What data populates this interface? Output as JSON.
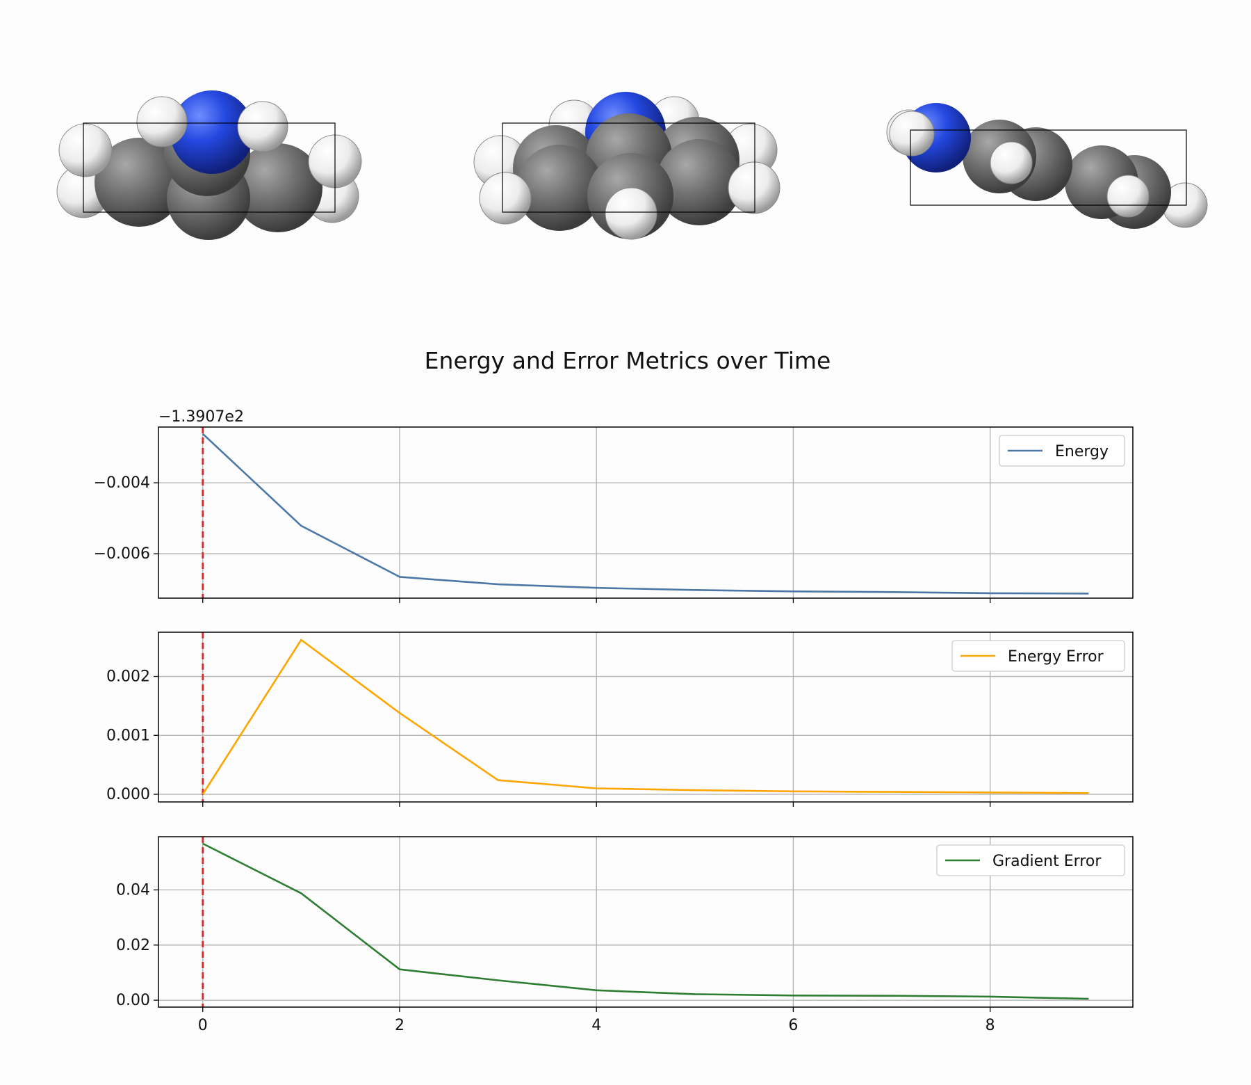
{
  "figure": {
    "title": "Energy and Error Metrics over Time",
    "marker_line_x": 0,
    "molecule_views": [
      {
        "name": "view-1"
      },
      {
        "name": "view-2"
      },
      {
        "name": "view-3"
      }
    ],
    "atom_colors": {
      "nitrogen": "#2448e0",
      "carbon": "#7a7a7a",
      "hydrogen": "#f2f2f2"
    }
  },
  "chart_data": [
    {
      "type": "line",
      "series": [
        {
          "name": "Energy",
          "color": "#4c78a8",
          "x": [
            0,
            1,
            2,
            3,
            4,
            5,
            6,
            7,
            8,
            9
          ],
          "y": [
            -139.07262,
            -139.07521,
            -139.07665,
            -139.07686,
            -139.07696,
            -139.07702,
            -139.07706,
            -139.07708,
            -139.07711,
            -139.07712
          ]
        }
      ],
      "offset_label": "−1.3907e2",
      "offset": -139.07,
      "yticks": [
        -0.004,
        -0.006
      ],
      "ytick_labels": [
        "−0.004",
        "−0.006"
      ],
      "xlim": [
        -0.45,
        9.45
      ],
      "ylim": [
        -0.00725,
        -0.00243
      ],
      "grid": true,
      "legend": "top-right"
    },
    {
      "type": "line",
      "series": [
        {
          "name": "Energy Error",
          "color": "#ffa500",
          "x": [
            0,
            1,
            2,
            3,
            4,
            5,
            6,
            7,
            8,
            9
          ],
          "y": [
            0.0,
            0.00262,
            0.00138,
            0.00024,
            0.0001,
            7e-05,
            5e-05,
            4e-05,
            3e-05,
            2e-05
          ]
        }
      ],
      "yticks": [
        0.0,
        0.001,
        0.002
      ],
      "ytick_labels": [
        "0.000",
        "0.001",
        "0.002"
      ],
      "xlim": [
        -0.45,
        9.45
      ],
      "ylim": [
        -0.00013,
        0.00275
      ],
      "grid": true,
      "legend": "top-right"
    },
    {
      "type": "line",
      "series": [
        {
          "name": "Gradient Error",
          "color": "#2e7d32",
          "x": [
            0,
            1,
            2,
            3,
            4,
            5,
            6,
            7,
            8,
            9
          ],
          "y": [
            0.0568,
            0.0388,
            0.0112,
            0.0072,
            0.0036,
            0.0022,
            0.0017,
            0.0016,
            0.0013,
            0.0005
          ]
        }
      ],
      "yticks": [
        0.0,
        0.02,
        0.04
      ],
      "ytick_labels": [
        "0.00",
        "0.02",
        "0.04"
      ],
      "xlim": [
        -0.45,
        9.45
      ],
      "ylim": [
        -0.0025,
        0.0593
      ],
      "xticks": [
        0,
        2,
        4,
        6,
        8
      ],
      "xtick_labels": [
        "0",
        "2",
        "4",
        "6",
        "8"
      ],
      "grid": true,
      "legend": "top-right"
    }
  ]
}
